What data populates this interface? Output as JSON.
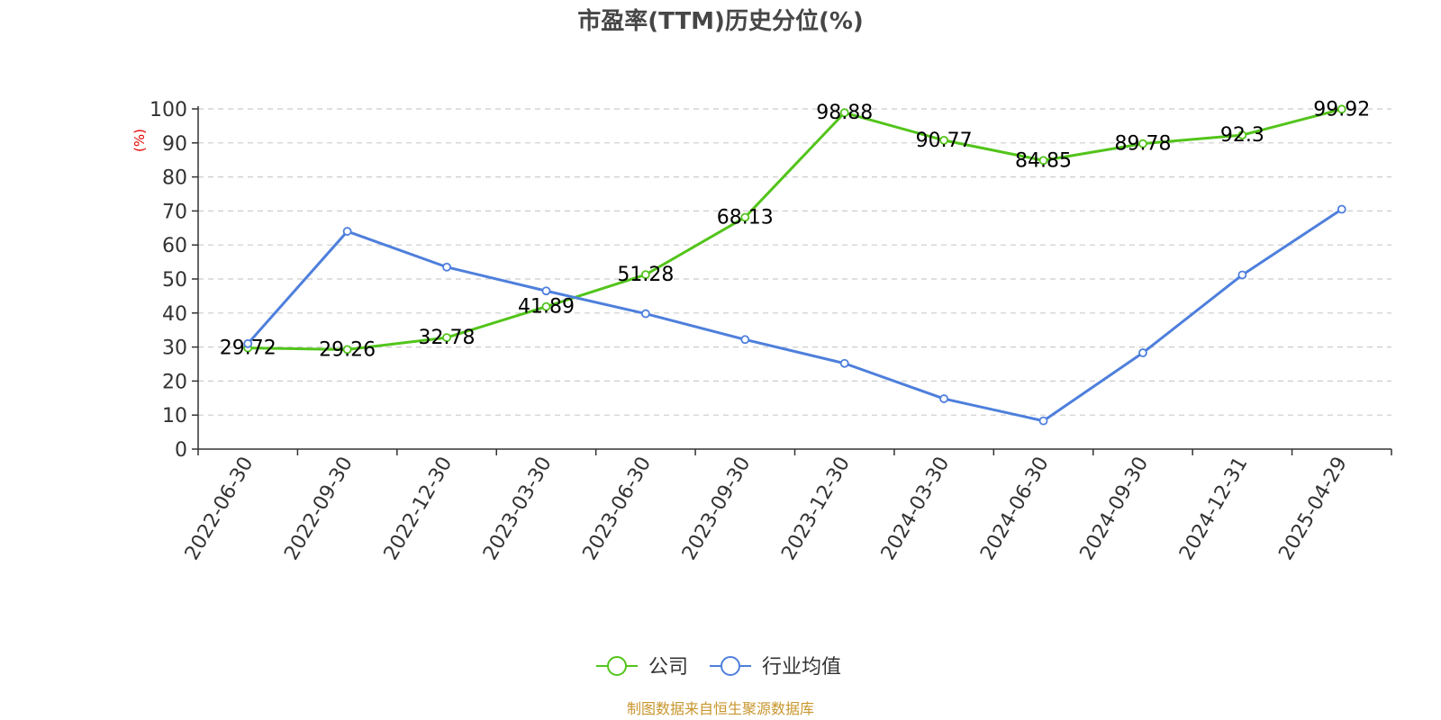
{
  "chart_data": {
    "type": "line",
    "title": "市盈率(TTM)历史分位(%)",
    "ylabel": "(%)",
    "xlabel": "",
    "ylim": [
      0,
      100
    ],
    "yticks": [
      0,
      10,
      20,
      30,
      40,
      50,
      60,
      70,
      80,
      90,
      100
    ],
    "categories": [
      "2022-06-30",
      "2022-09-30",
      "2022-12-30",
      "2023-03-30",
      "2023-06-30",
      "2023-09-30",
      "2023-12-30",
      "2024-03-30",
      "2024-06-30",
      "2024-09-30",
      "2024-12-31",
      "2025-04-29"
    ],
    "grid": true,
    "legend_position": "bottom-center",
    "series": [
      {
        "name": "公司",
        "color": "#52c41a",
        "show_labels": true,
        "values": [
          29.72,
          29.26,
          32.78,
          41.89,
          51.28,
          68.13,
          98.88,
          90.77,
          84.85,
          89.78,
          92.3,
          99.92
        ]
      },
      {
        "name": "行业均值",
        "color": "#4e7fdc",
        "show_labels": false,
        "values": [
          31.0,
          64.0,
          53.5,
          46.5,
          39.8,
          32.2,
          25.2,
          14.8,
          8.3,
          28.3,
          51.2,
          70.5
        ]
      }
    ],
    "source": "制图数据来自恒生聚源数据库",
    "colors": {
      "axis": "#333333",
      "grid": "#cccccc",
      "title": "#464646",
      "ylabel": "#e60000",
      "source": "#c8962d"
    }
  }
}
